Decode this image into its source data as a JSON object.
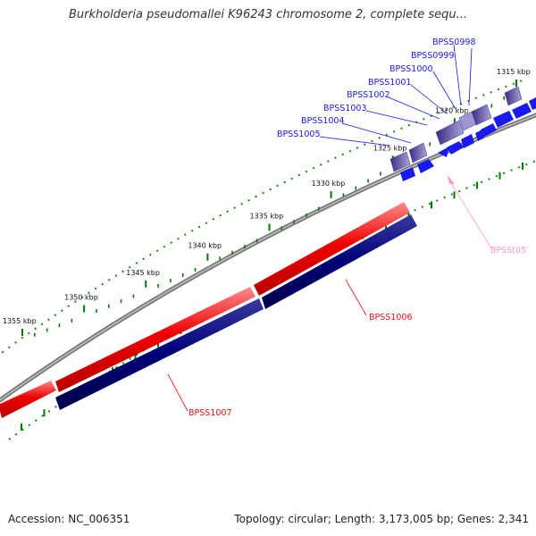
{
  "title": "Burkholderia pseudomallei K96243 chromosome 2, complete sequ...",
  "footer": {
    "accession": "Accession: NC_006351",
    "summary": "Topology: circular; Length: 3,173,005 bp; Genes: 2,341"
  },
  "colors": {
    "forward_strand": "#ee1111",
    "reverse_strand": "#000077",
    "small_gene": "#1a1aee",
    "operon_box": "#6a5fb5",
    "trna_label": "#ff99cc",
    "tick": "#007a00"
  },
  "ruler": {
    "ticks": [
      {
        "label": "1315 kbp",
        "kbp": 1315
      },
      {
        "label": "1320 kbp",
        "kbp": 1320
      },
      {
        "label": "1325 kbp",
        "kbp": 1325
      },
      {
        "label": "1330 kbp",
        "kbp": 1330
      },
      {
        "label": "1335 kbp",
        "kbp": 1335
      },
      {
        "label": "1340 kbp",
        "kbp": 1340
      },
      {
        "label": "1345 kbp",
        "kbp": 1345
      },
      {
        "label": "1350 kbp",
        "kbp": 1350
      },
      {
        "label": "1355 kbp",
        "kbp": 1355
      }
    ]
  },
  "genes": {
    "upper_cluster": [
      {
        "label": "BPSS0998"
      },
      {
        "label": "BPSS0999"
      },
      {
        "label": "BPSS1000"
      },
      {
        "label": "BPSS1001"
      },
      {
        "label": "BPSS1002"
      },
      {
        "label": "BPSS1003"
      },
      {
        "label": "BPSS1004"
      },
      {
        "label": "BPSS1005"
      }
    ],
    "large": [
      {
        "label": "BPSS1006",
        "strand": "reverse"
      },
      {
        "label": "BPSS1007",
        "strand": "forward"
      }
    ],
    "rna": [
      {
        "label": "BPSSt05"
      }
    ]
  }
}
